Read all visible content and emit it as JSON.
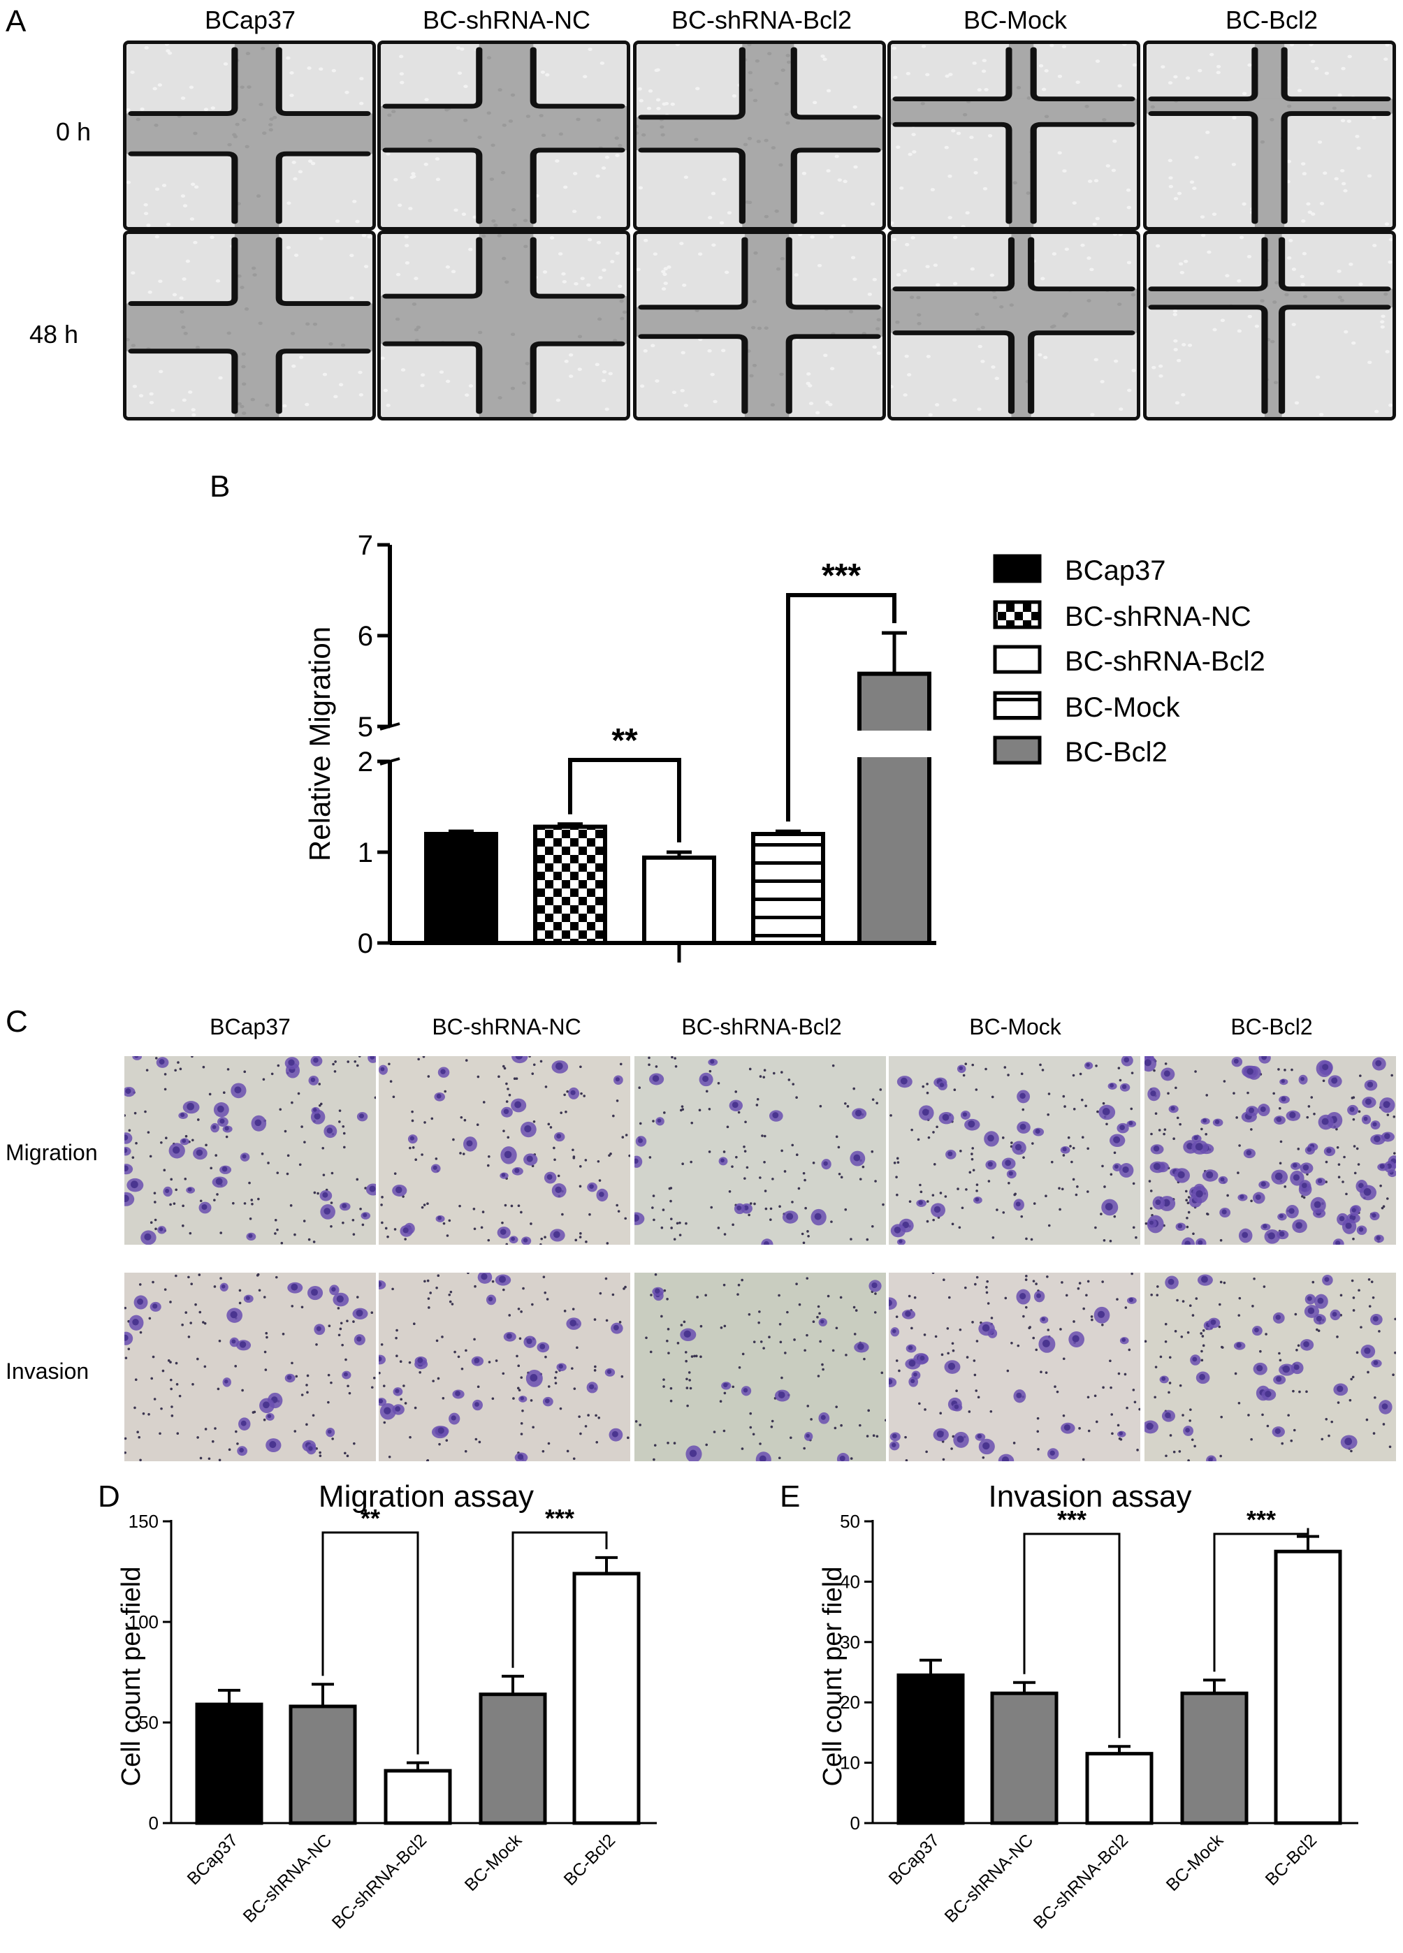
{
  "panel_labels": {
    "a": "A",
    "b": "B",
    "c": "C",
    "d": "D",
    "e": "E"
  },
  "groups": [
    "BCap37",
    "BC-shRNA-NC",
    "BC-shRNA-Bcl2",
    "BC-Mock",
    "BC-Bcl2"
  ],
  "panel_a": {
    "row_labels": [
      "0 h",
      "48 h"
    ]
  },
  "panel_c": {
    "row_labels": [
      "Migration",
      "Invasion"
    ]
  },
  "chart_data": [
    {
      "panel": "B",
      "type": "bar",
      "categories": [
        "BCap37",
        "BC-shRNA-NC",
        "BC-shRNA-Bcl2",
        "BC-Mock",
        "BC-Bcl2"
      ],
      "values": [
        1.2,
        1.28,
        0.94,
        1.2,
        5.58
      ],
      "errors": [
        0.03,
        0.03,
        0.06,
        0.03,
        0.45
      ],
      "title": "",
      "xlabel": "",
      "ylabel": "Relative Migration",
      "ylim": [
        0,
        7
      ],
      "axis_break": [
        2,
        5
      ],
      "yticks": [
        "0",
        "1",
        "2",
        "5",
        "6",
        "7"
      ],
      "fills": [
        "solid-black",
        "checkerboard",
        "white",
        "horizontal-stripes",
        "gray"
      ],
      "legend": [
        "BCap37",
        "BC-shRNA-NC",
        "BC-shRNA-Bcl2",
        "BC-Mock",
        "BC-Bcl2"
      ],
      "legend_position": "right",
      "significance": [
        {
          "from": "BC-shRNA-NC",
          "to": "BC-shRNA-Bcl2",
          "label": "**"
        },
        {
          "from": "BC-Mock",
          "to": "BC-Bcl2",
          "label": "***"
        }
      ]
    },
    {
      "panel": "D",
      "type": "bar",
      "title": "Migration assay",
      "ylabel": "Cell count per field",
      "categories": [
        "BCap37",
        "BC-shRNA-NC",
        "BC-shRNA-Bcl2",
        "BC-Mock",
        "BC-Bcl2"
      ],
      "values": [
        59,
        58,
        26,
        64,
        124
      ],
      "errors": [
        7,
        11,
        4,
        9,
        8
      ],
      "colors": [
        "#000000",
        "#808080",
        "#ffffff",
        "#808080",
        "#ffffff"
      ],
      "ylim": [
        0,
        150
      ],
      "yticks": [
        "0",
        "50",
        "100",
        "150"
      ],
      "significance": [
        {
          "from": "BC-shRNA-NC",
          "to": "BC-shRNA-Bcl2",
          "label": "**"
        },
        {
          "from": "BC-Mock",
          "to": "BC-Bcl2",
          "label": "***"
        }
      ]
    },
    {
      "panel": "E",
      "type": "bar",
      "title": "Invasion assay",
      "ylabel": "Cell count per field",
      "categories": [
        "BCap37",
        "BC-shRNA-NC",
        "BC-shRNA-Bcl2",
        "BC-Mock",
        "BC-Bcl2"
      ],
      "values": [
        24.5,
        21.5,
        11.5,
        21.5,
        45
      ],
      "errors": [
        2.5,
        1.8,
        1.2,
        2.2,
        2.5
      ],
      "colors": [
        "#000000",
        "#808080",
        "#ffffff",
        "#808080",
        "#ffffff"
      ],
      "ylim": [
        0,
        50
      ],
      "yticks": [
        "0",
        "10",
        "20",
        "30",
        "40",
        "50"
      ],
      "significance": [
        {
          "from": "BC-shRNA-NC",
          "to": "BC-shRNA-Bcl2",
          "label": "***"
        },
        {
          "from": "BC-Mock",
          "to": "BC-Bcl2",
          "label": "***"
        }
      ]
    }
  ]
}
